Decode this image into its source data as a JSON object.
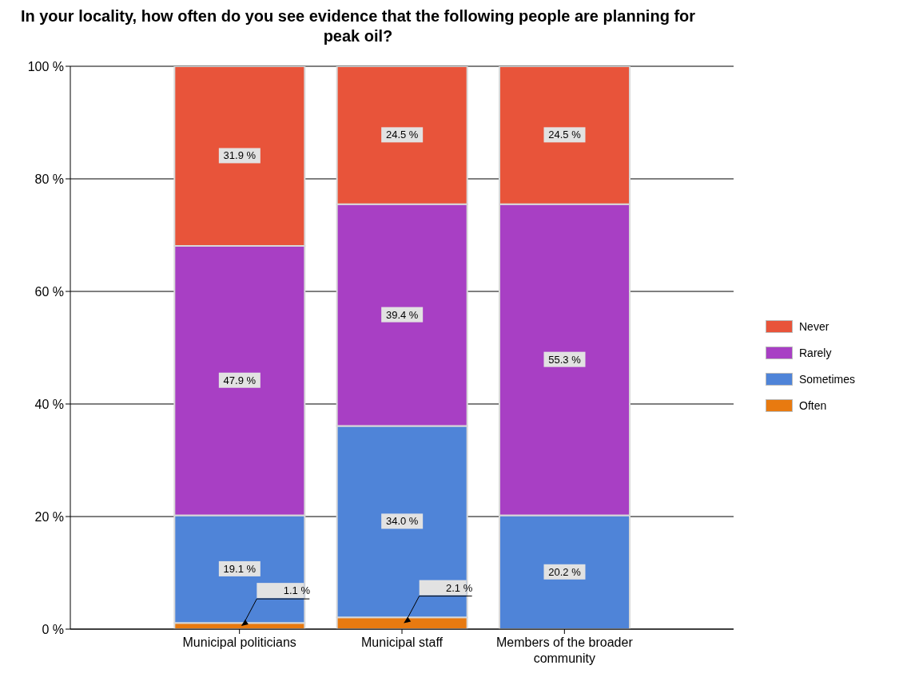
{
  "chart_data": {
    "type": "bar",
    "title": "In your locality, how often do you see evidence that the following people are planning for peak oil?",
    "categories": [
      "Municipal politicians",
      "Municipal staff",
      "Members of the broader community"
    ],
    "stacked": true,
    "series": [
      {
        "name": "Often",
        "color": "#e87a10",
        "values": [
          1.1,
          2.1,
          0
        ],
        "value_labels": [
          "1.1 %",
          "2.1 %",
          null
        ]
      },
      {
        "name": "Sometimes",
        "color": "#4f84d8",
        "values": [
          19.1,
          34.0,
          20.2
        ],
        "value_labels": [
          "19.1 %",
          "34.0 %",
          "20.2 %"
        ]
      },
      {
        "name": "Rarely",
        "color": "#a83fc4",
        "values": [
          47.9,
          39.4,
          55.3
        ],
        "value_labels": [
          "47.9 %",
          "39.4 %",
          "55.3 %"
        ]
      },
      {
        "name": "Never",
        "color": "#e8543a",
        "values": [
          31.9,
          24.5,
          24.5
        ],
        "value_labels": [
          "31.9 %",
          "24.5 %",
          "24.5 %"
        ]
      }
    ],
    "ylim": [
      0,
      100
    ],
    "yticks": [
      {
        "value": 0,
        "label": "0 %"
      },
      {
        "value": 20,
        "label": "20 %"
      },
      {
        "value": 40,
        "label": "40 %"
      },
      {
        "value": 60,
        "label": "60 %"
      },
      {
        "value": 80,
        "label": "80 %"
      },
      {
        "value": 100,
        "label": "100 %"
      }
    ],
    "grid": "y",
    "legend": "right"
  }
}
